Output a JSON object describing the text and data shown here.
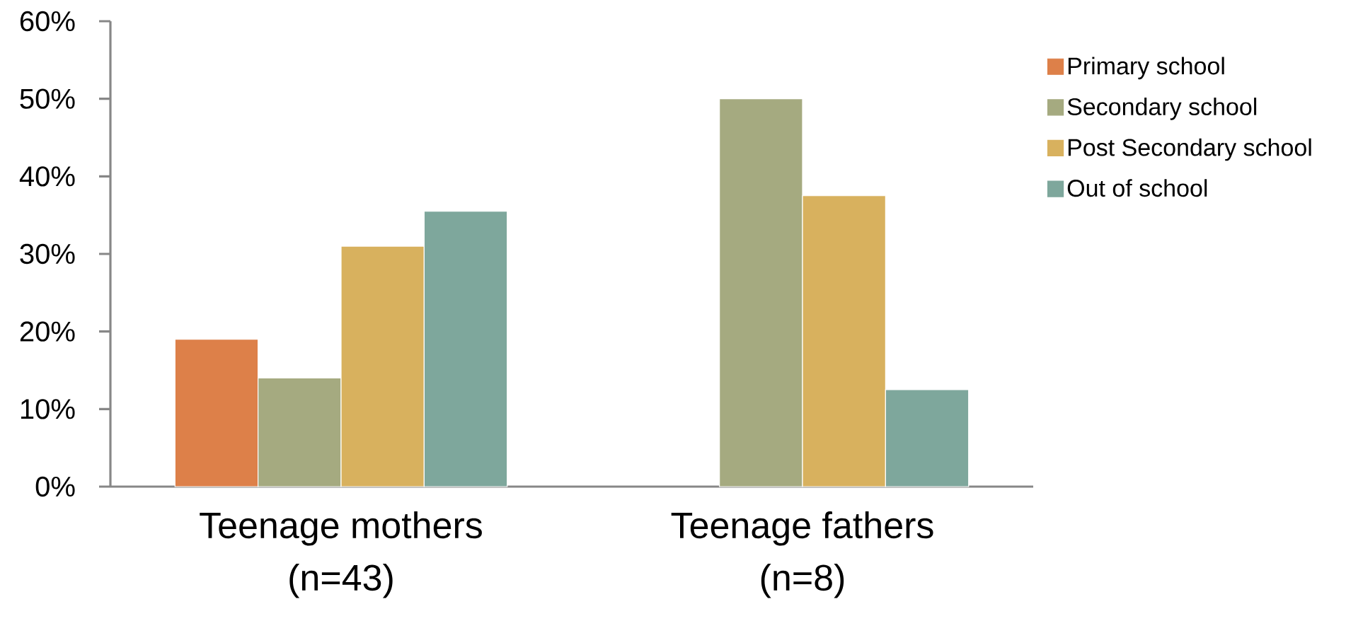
{
  "chart_data": {
    "type": "bar",
    "categories": [
      "Teenage mothers (n=43)",
      "Teenage fathers (n=8)"
    ],
    "series": [
      {
        "name": "Primary school",
        "color": "#DD8049",
        "values": [
          19,
          null
        ]
      },
      {
        "name": "Secondary school",
        "color": "#A5AA80",
        "values": [
          14,
          50
        ]
      },
      {
        "name": "Post Secondary school",
        "color": "#D8B15E",
        "values": [
          31,
          37.5
        ]
      },
      {
        "name": "Out of school",
        "color": "#7EA79C",
        "values": [
          35.5,
          12.5
        ]
      }
    ],
    "ylim": [
      0,
      60
    ],
    "yticks": [
      {
        "value": 0,
        "label": "0%"
      },
      {
        "value": 10,
        "label": "10%"
      },
      {
        "value": 20,
        "label": "20%"
      },
      {
        "value": 30,
        "label": "30%"
      },
      {
        "value": 40,
        "label": "40%"
      },
      {
        "value": 50,
        "label": "50%"
      },
      {
        "value": 60,
        "label": "60%"
      }
    ],
    "legend": "right"
  }
}
